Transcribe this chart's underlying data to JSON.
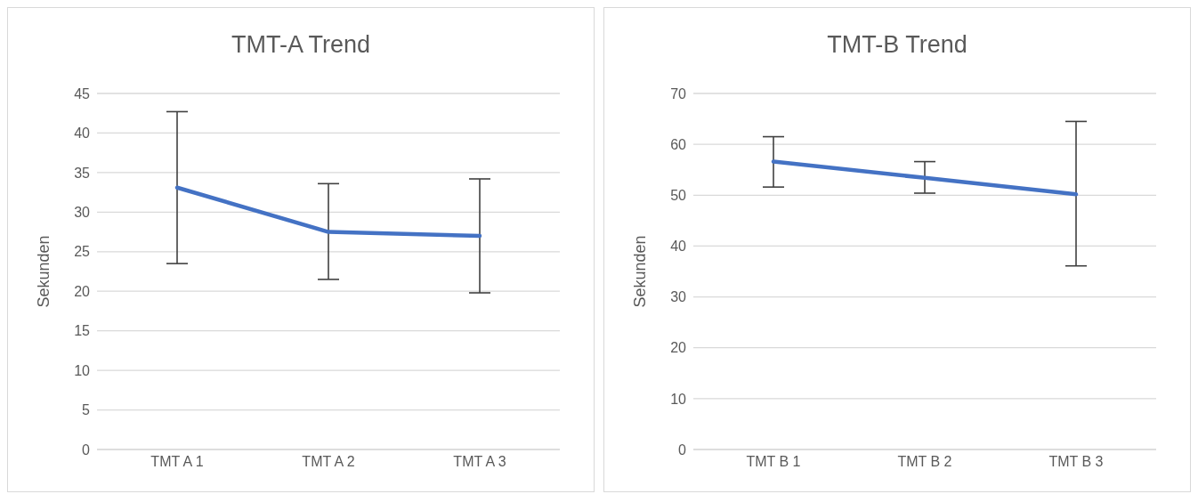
{
  "chart_data": [
    {
      "type": "line",
      "title": "TMT-A Trend",
      "ylabel": "Sekunden",
      "categories": [
        "TMT A 1",
        "TMT A 2",
        "TMT A 3"
      ],
      "series": [
        {
          "color": "#4472c4",
          "values": [
            33.1,
            27.5,
            27.0
          ],
          "errors": [
            [
              23.5,
              42.7
            ],
            [
              21.5,
              33.6
            ],
            [
              19.8,
              34.2
            ]
          ]
        }
      ],
      "ylim": [
        0,
        45
      ],
      "yticks": [
        0,
        5,
        10,
        15,
        20,
        25,
        30,
        35,
        40,
        45
      ],
      "grid": "y",
      "marker": "none",
      "line_style": "solid"
    },
    {
      "type": "line",
      "title": "TMT-B Trend",
      "ylabel": "Sekunden",
      "categories": [
        "TMT B 1",
        "TMT B 2",
        "TMT B 3"
      ],
      "series": [
        {
          "color": "#4472c4",
          "values": [
            56.6,
            53.4,
            50.2
          ],
          "errors": [
            [
              51.6,
              61.5
            ],
            [
              50.4,
              56.6
            ],
            [
              36.1,
              64.5
            ]
          ]
        }
      ],
      "ylim": [
        0,
        70
      ],
      "yticks": [
        0,
        10,
        20,
        30,
        40,
        50,
        60,
        70
      ],
      "grid": "y",
      "marker": "none",
      "line_style": "solid"
    }
  ]
}
